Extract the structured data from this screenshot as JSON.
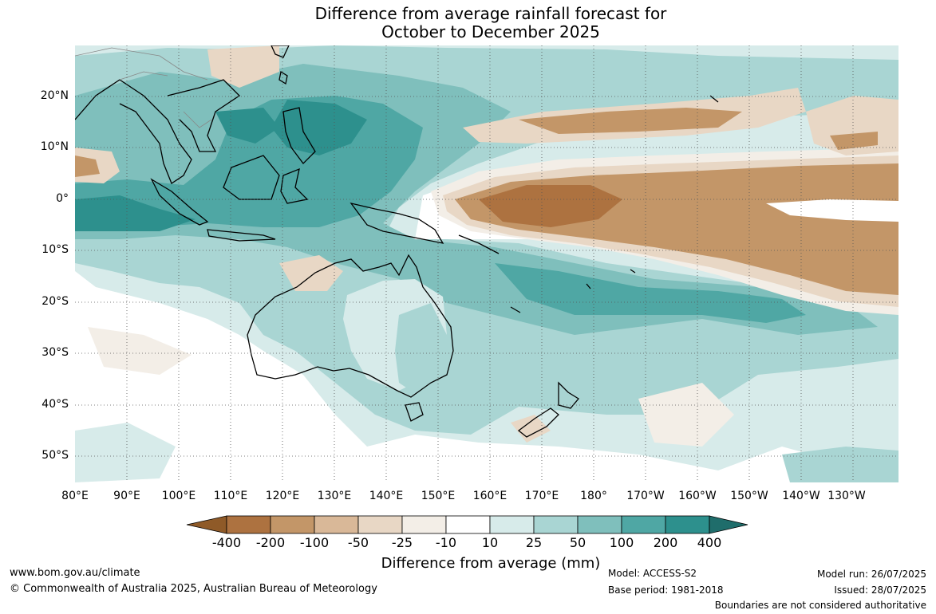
{
  "title_line1": "Difference from average rainfall forecast for",
  "title_line2": "October to December 2025",
  "lat_labels": [
    "20°N",
    "10°N",
    "0°",
    "10°S",
    "20°S",
    "30°S",
    "40°S",
    "50°S"
  ],
  "lon_labels": [
    "80°E",
    "90°E",
    "100°E",
    "110°E",
    "120°E",
    "130°E",
    "140°E",
    "150°E",
    "160°E",
    "170°E",
    "180°",
    "170°W",
    "160°W",
    "150°W",
    "140°W",
    "130°W"
  ],
  "colorbar": {
    "title": "Difference from average (mm)",
    "tick_labels": [
      "-400",
      "-200",
      "-100",
      "-50",
      "-25",
      "-10",
      "10",
      "25",
      "50",
      "100",
      "200",
      "400"
    ],
    "colors": [
      "#8f5a28",
      "#ad7240",
      "#c39668",
      "#d9b898",
      "#e8d7c5",
      "#f3eee7",
      "#ffffff",
      "#d7ebea",
      "#a9d5d3",
      "#7fbfbc",
      "#4fa7a4",
      "#2d908d",
      "#1f6d6b"
    ]
  },
  "footer": {
    "website": "www.bom.gov.au/climate",
    "copyright": "© Commonwealth of Australia 2025, Australian Bureau of Meteorology",
    "model": "Model: ACCESS-S2",
    "base_period": "Base period: 1981-2018",
    "model_run": "Model run: 26/07/2025",
    "issued": "Issued: 28/07/2025",
    "disclaimer": "Boundaries are not considered authoritative"
  }
}
